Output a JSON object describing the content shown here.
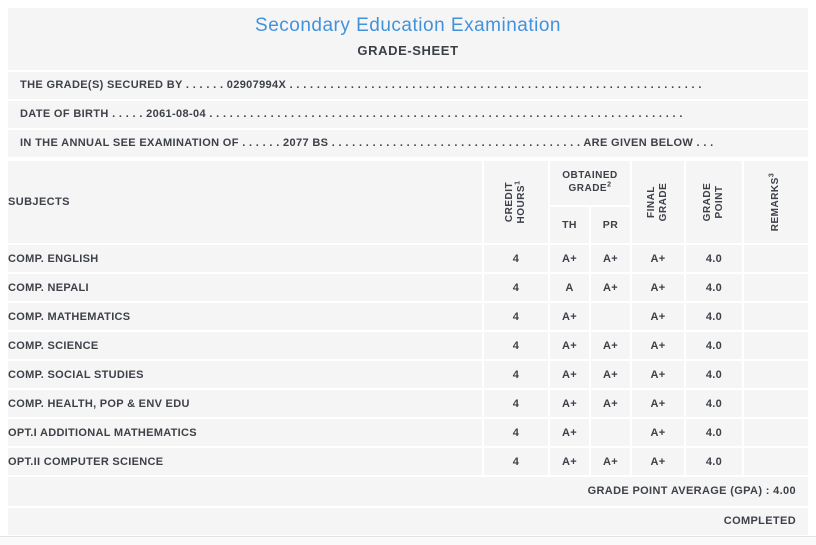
{
  "sheet": {
    "title": "Secondary Education Examination",
    "subtitle": "GRADE-SHEET"
  },
  "colors": {
    "accent": "#4292db",
    "text": "#3d4148",
    "band": "#f5f5f6",
    "page": "#ffffff"
  },
  "info": {
    "line1": "THE GRADE(S) SECURED BY . . . . . . 02907994X . . . . . . . . . . . . . . . . . . . . . . . . . . . . . . . . . . . . . . . . . . . . . . . . . . . . . . . . . . . . .",
    "line2": "DATE OF BIRTH . . . . . 2061-08-04 . . . . . . . . . . . . . . . . . . . . . . . . . . . . . . . . . . . . . . . . . . . . . . . . . . . . . . . . . . . . . . . . . . . . . .",
    "line3": "IN THE ANNUAL SEE EXAMINATION OF . . . . . . 2077 BS . . . . . . . . . . . . . . . . . . . . . . . . . . . . . . . . . . . . . ARE GIVEN BELOW . . ."
  },
  "table": {
    "headers": {
      "subjects": "SUBJECTS",
      "credit_hours": "CREDIT HOURS",
      "credit_hours_sup": "1",
      "obtained_grade": "OBTAINED GRADE",
      "obtained_grade_sup": "2",
      "th": "TH",
      "pr": "PR",
      "final_grade": "FINAL GRADE",
      "grade_point": "GRADE POINT",
      "remarks": "REMARKS",
      "remarks_sup": "3"
    },
    "rows": [
      {
        "subject": "COMP. ENGLISH",
        "credit": "4",
        "th": "A+",
        "pr": "A+",
        "final": "A+",
        "gp": "4.0",
        "remarks": ""
      },
      {
        "subject": "COMP. NEPALI",
        "credit": "4",
        "th": "A",
        "pr": "A+",
        "final": "A+",
        "gp": "4.0",
        "remarks": ""
      },
      {
        "subject": "COMP. MATHEMATICS",
        "credit": "4",
        "th": "A+",
        "pr": "",
        "final": "A+",
        "gp": "4.0",
        "remarks": ""
      },
      {
        "subject": "COMP. SCIENCE",
        "credit": "4",
        "th": "A+",
        "pr": "A+",
        "final": "A+",
        "gp": "4.0",
        "remarks": ""
      },
      {
        "subject": "COMP. SOCIAL STUDIES",
        "credit": "4",
        "th": "A+",
        "pr": "A+",
        "final": "A+",
        "gp": "4.0",
        "remarks": ""
      },
      {
        "subject": "COMP. HEALTH, POP & ENV EDU",
        "credit": "4",
        "th": "A+",
        "pr": "A+",
        "final": "A+",
        "gp": "4.0",
        "remarks": ""
      },
      {
        "subject": "OPT.I ADDITIONAL MATHEMATICS",
        "credit": "4",
        "th": "A+",
        "pr": "",
        "final": "A+",
        "gp": "4.0",
        "remarks": ""
      },
      {
        "subject": "OPT.II COMPUTER SCIENCE",
        "credit": "4",
        "th": "A+",
        "pr": "A+",
        "final": "A+",
        "gp": "4.0",
        "remarks": ""
      }
    ]
  },
  "summary": {
    "gpa_line": "GRADE POINT AVERAGE (GPA) : 4.00",
    "status": "COMPLETED"
  }
}
